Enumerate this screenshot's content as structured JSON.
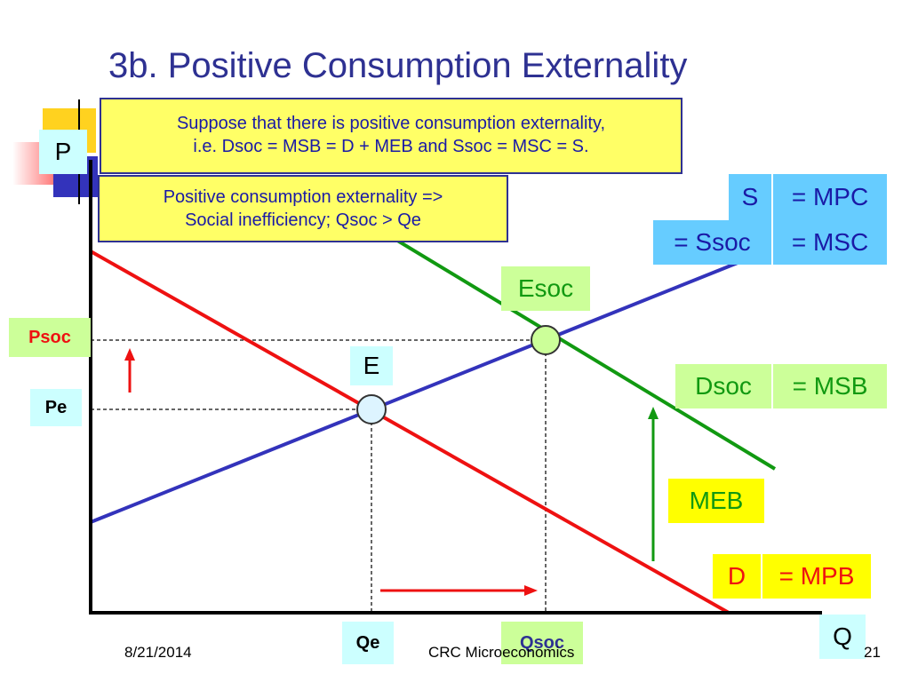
{
  "slide": {
    "title": "3b. Positive Consumption Externality",
    "footer_date": "8/21/2014",
    "footer_center": "CRC Microeconomics",
    "page_number": "21"
  },
  "notes": {
    "top_line1": "Suppose that there is positive consumption externality,",
    "top_line2": "i.e. Dsoc = MSB = D + MEB and Ssoc = MSC = S.",
    "mid_line1": "Positive consumption externality =>",
    "mid_line2": "Social inefficiency; Qsoc > Qe"
  },
  "axes": {
    "y_label": "P",
    "x_label": "Q"
  },
  "prices": {
    "psoc": "Psoc",
    "pe": "Pe"
  },
  "quantities": {
    "qe": "Qe",
    "qsoc": "Qsoc"
  },
  "points": {
    "e": "E",
    "esoc": "Esoc"
  },
  "curves": {
    "supply_name": "S",
    "supply_mpc": "= MPC",
    "supply_ssoc": "= Ssoc",
    "supply_msc": "= MSC",
    "dsoc_name": "Dsoc",
    "dsoc_msb": "= MSB",
    "meb": "MEB",
    "demand_name": "D",
    "demand_mpb": "= MPB"
  },
  "colors": {
    "supply": "#3333bb",
    "demand": "#ee1111",
    "social_demand": "#119911",
    "title": "#2e3192",
    "note_bg": "#ffff66",
    "cyan_label": "#ccffff",
    "blue_label": "#66ccff",
    "green_label": "#ccff99",
    "yellow_label": "#ffff00"
  }
}
